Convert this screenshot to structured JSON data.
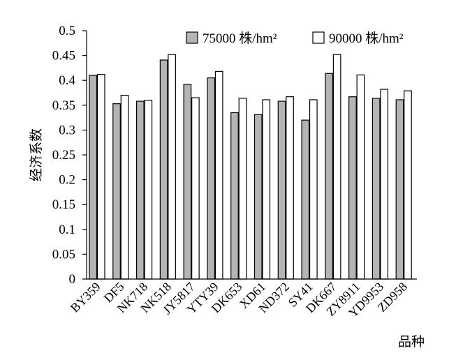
{
  "chart_data": {
    "type": "bar",
    "title": "",
    "xlabel": "品种",
    "ylabel": "经济系数",
    "ylim": [
      0,
      0.5
    ],
    "yticks": [
      "0",
      "0.05",
      "0.1",
      "0.15",
      "0.2",
      "0.25",
      "0.3",
      "0.35",
      "0.4",
      "0.45",
      "0.5"
    ],
    "grid": false,
    "legend_position": "top-right",
    "categories": [
      "BY359",
      "DF5",
      "NK718",
      "NK518",
      "JY5817",
      "YTY39",
      "DK653",
      "XD61",
      "ND372",
      "SY41",
      "DK667",
      "ZY8911",
      "YD9953",
      "ZD958"
    ],
    "series": [
      {
        "name": "75000 株/hm²",
        "color": "#b4b4b4",
        "values": [
          0.41,
          0.353,
          0.358,
          0.441,
          0.392,
          0.405,
          0.335,
          0.331,
          0.358,
          0.32,
          0.414,
          0.367,
          0.364,
          0.361
        ]
      },
      {
        "name": "90000 株/hm²",
        "color": "#ffffff",
        "values": [
          0.412,
          0.37,
          0.36,
          0.452,
          0.365,
          0.418,
          0.364,
          0.361,
          0.367,
          0.361,
          0.452,
          0.411,
          0.382,
          0.379
        ]
      }
    ]
  }
}
